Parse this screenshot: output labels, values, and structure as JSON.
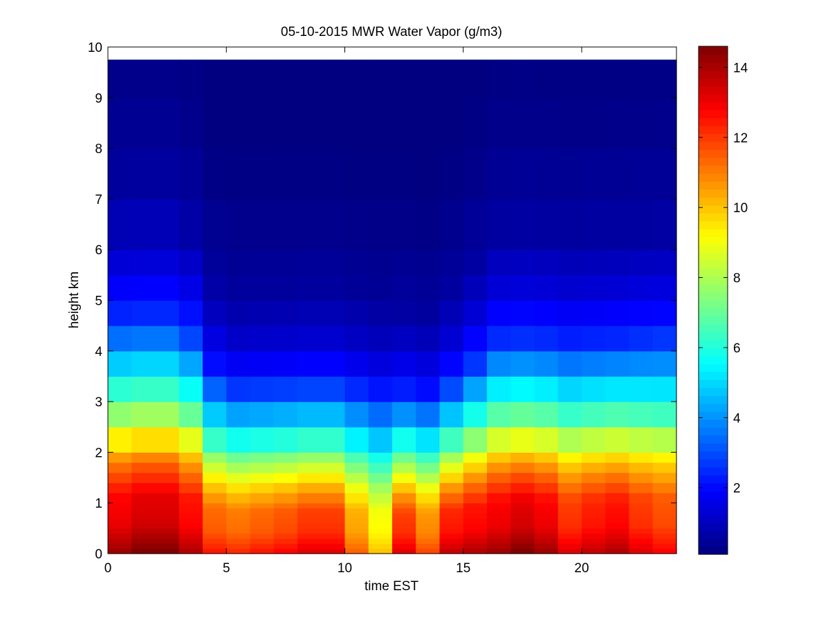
{
  "chart_data": {
    "type": "heatmap",
    "title": "05-10-2015 MWR Water Vapor (g/m3)",
    "xlabel": "time EST",
    "ylabel": "height km",
    "xlim": [
      0,
      24
    ],
    "ylim": [
      0,
      10
    ],
    "x_ticks": [
      "0",
      "5",
      "10",
      "15",
      "20"
    ],
    "y_ticks": [
      "0",
      "1",
      "2",
      "3",
      "4",
      "5",
      "6",
      "7",
      "8",
      "9",
      "10"
    ],
    "colorbar": {
      "colormap": "jet",
      "clim": [
        0.1,
        14.6
      ],
      "ticks": [
        "2",
        "4",
        "6",
        "8",
        "10",
        "12",
        "14"
      ]
    },
    "x": [
      0.5,
      1.5,
      2.5,
      3.5,
      4.5,
      5.5,
      6.5,
      7.5,
      8.5,
      9.5,
      10.5,
      11.5,
      12.5,
      13.5,
      14.5,
      15.5,
      16.5,
      17.5,
      18.5,
      19.5,
      20.5,
      21.5,
      22.5,
      23.5
    ],
    "y": [
      0,
      0.1,
      0.2,
      0.3,
      0.4,
      0.5,
      0.6,
      0.7,
      0.8,
      0.9,
      1.0,
      1.2,
      1.4,
      1.6,
      1.8,
      2.0,
      2.5,
      3.0,
      3.5,
      4.0,
      4.5,
      5.0,
      5.5,
      6.0,
      7.0,
      8.0,
      9.0,
      9.75
    ],
    "profiles": [
      [
        0.0,
        14.0
      ],
      [
        0.2,
        13.5
      ],
      [
        0.5,
        12.8
      ],
      [
        1.0,
        12.5
      ],
      [
        1.5,
        11.0
      ],
      [
        2.0,
        9.0
      ],
      [
        2.5,
        7.0
      ],
      [
        3.0,
        5.5
      ],
      [
        3.5,
        4.0
      ],
      [
        4.0,
        2.5
      ],
      [
        5.0,
        1.3
      ],
      [
        6.0,
        0.6
      ],
      [
        8.0,
        0.25
      ],
      [
        10.0,
        0.1
      ]
    ],
    "column_scale": [
      1.02,
      1.05,
      1.05,
      1.0,
      0.9,
      0.88,
      0.9,
      0.92,
      0.95,
      0.95,
      0.82,
      0.72,
      0.95,
      0.85,
      0.98,
      1.0,
      1.02,
      1.05,
      1.02,
      0.95,
      0.98,
      1.0,
      0.95,
      0.92
    ],
    "column_stretch": [
      1.15,
      1.15,
      1.15,
      1.1,
      0.9,
      0.85,
      0.85,
      0.85,
      0.85,
      0.85,
      0.85,
      0.85,
      0.8,
      0.8,
      0.85,
      0.95,
      1.05,
      1.05,
      1.05,
      1.05,
      1.05,
      1.05,
      1.08,
      1.1
    ]
  }
}
